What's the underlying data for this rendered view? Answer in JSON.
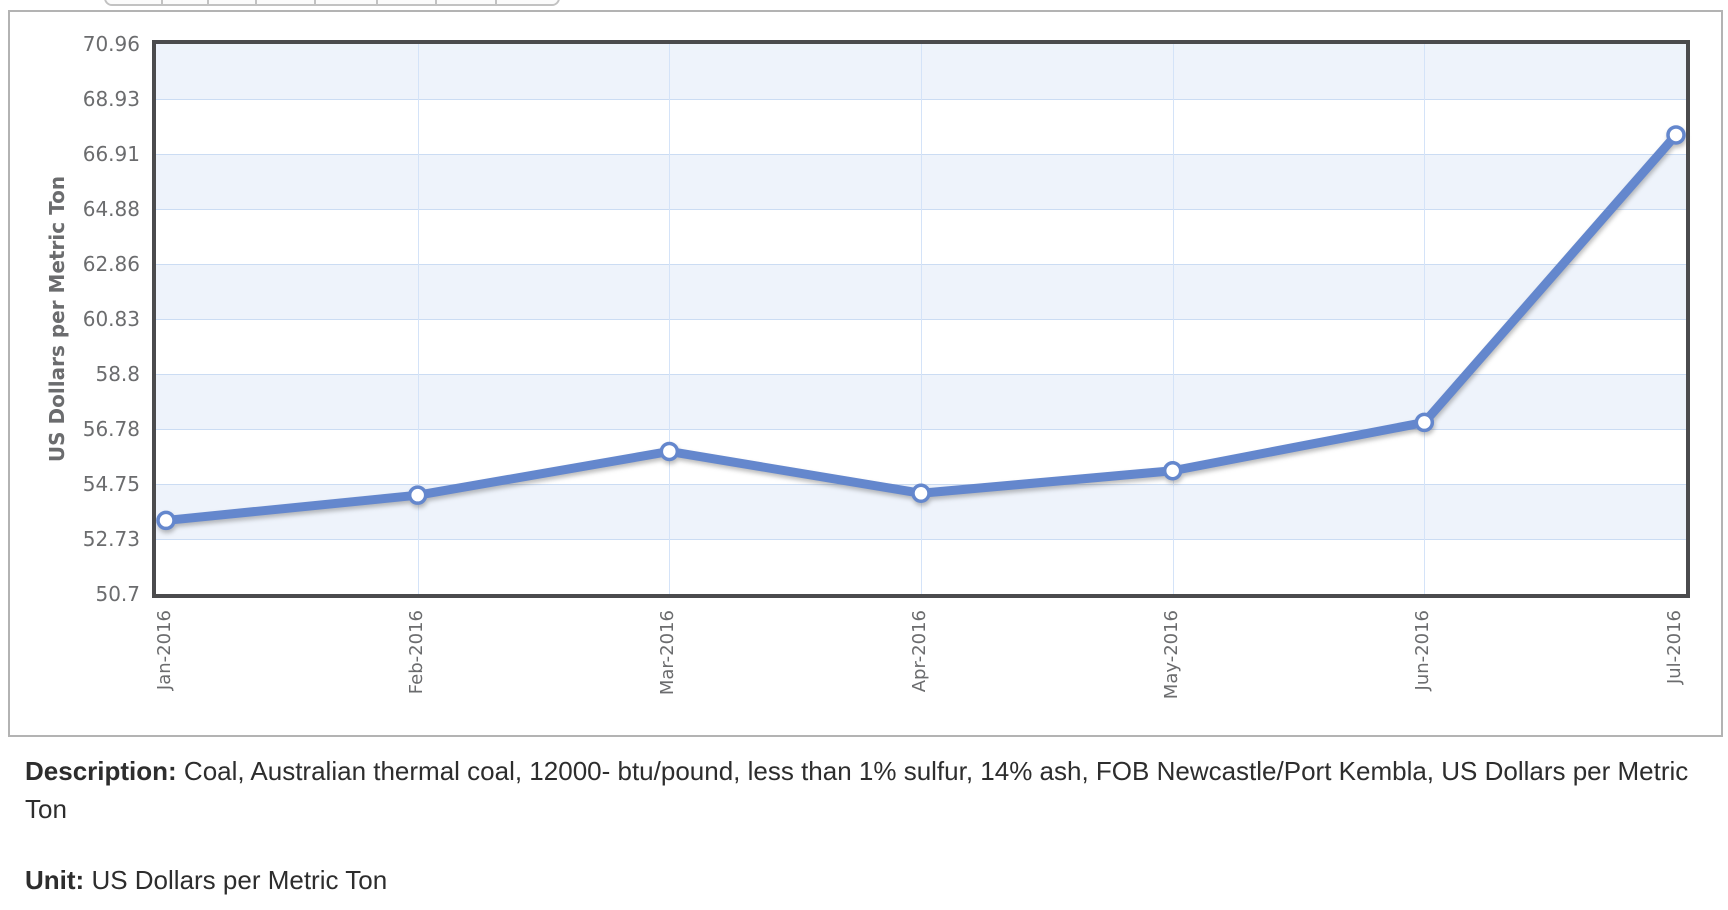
{
  "chart_data": {
    "type": "line",
    "categories": [
      "Jan-2016",
      "Feb-2016",
      "Mar-2016",
      "Apr-2016",
      "May-2016",
      "Jun-2016",
      "Jul-2016"
    ],
    "values": [
      53.41,
      54.34,
      55.95,
      54.41,
      55.24,
      57.02,
      67.61
    ],
    "title": "",
    "xlabel": "",
    "ylabel": "US Dollars per Metric Ton",
    "ylim": [
      50.7,
      70.96
    ],
    "y_ticks": [
      70.96,
      68.93,
      66.91,
      64.88,
      62.86,
      60.83,
      58.8,
      56.78,
      54.75,
      52.73,
      50.7
    ],
    "grid": "horizontal and vertical light-blue gridlines, alternating band fills",
    "legend": "none",
    "line_color": "#6487cd",
    "marker_fill": "#ffffff",
    "band_color": "#eef3fb",
    "frame_color": "#4b4b4d"
  },
  "description": {
    "label": "Description:",
    "text": "Coal, Australian thermal coal, 12000- btu/pound, less than 1% sulfur, 14% ash, FOB Newcastle/Port Kembla, US Dollars per Metric Ton"
  },
  "unit": {
    "label": "Unit:",
    "text": "US Dollars per Metric Ton"
  }
}
